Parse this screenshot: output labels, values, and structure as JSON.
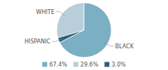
{
  "chart_data": {
    "type": "pie",
    "categories": [
      "WHITE",
      "HISPANIC",
      "BLACK"
    ],
    "values": [
      29.6,
      3.0,
      67.4
    ],
    "value_labels": [
      "29.6%",
      "3.0%",
      "67.4%"
    ],
    "colors": [
      "#b8ced9",
      "#2e5f7a",
      "#7aafc4"
    ],
    "legend": "bottom"
  }
}
